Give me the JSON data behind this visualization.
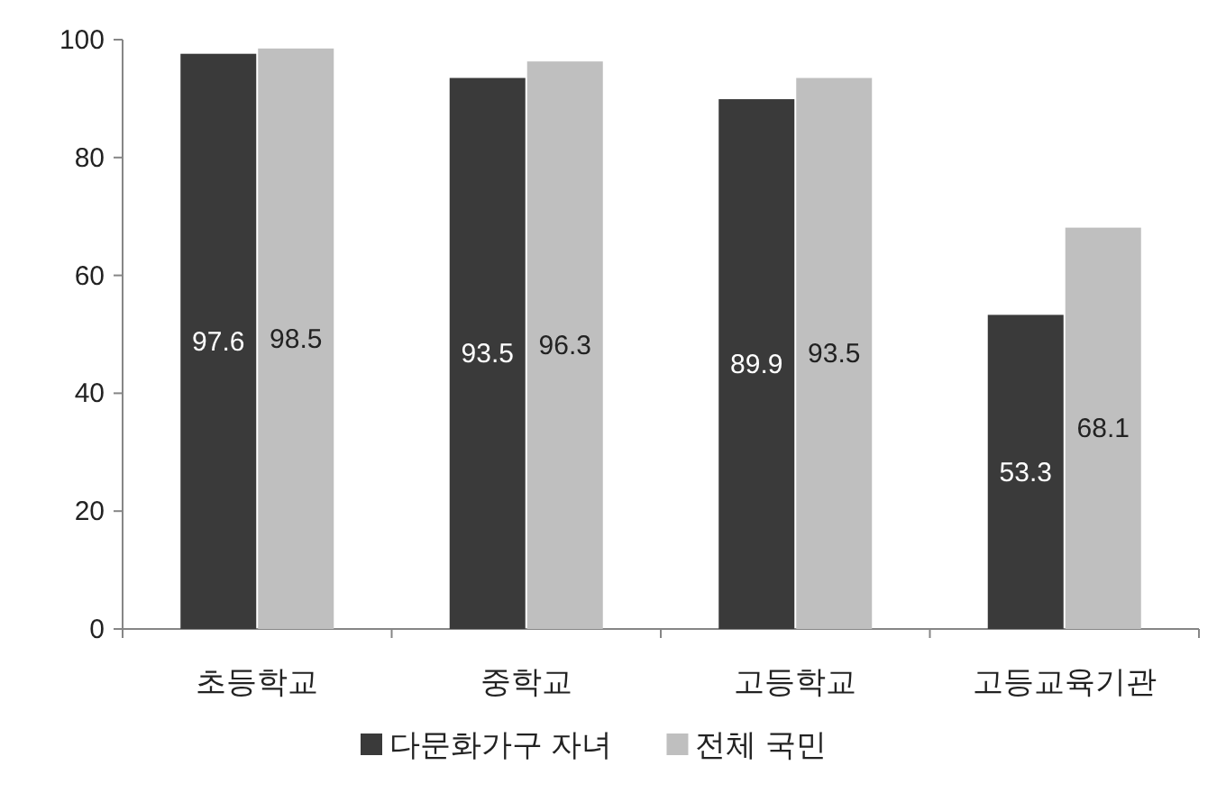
{
  "chart_data": {
    "type": "bar",
    "categories": [
      "초등학교",
      "중학교",
      "고등학교",
      "고등교육기관"
    ],
    "series": [
      {
        "name": "다문화가구 자녀",
        "color": "#3a3a3a",
        "values": [
          97.6,
          93.5,
          89.9,
          53.3
        ]
      },
      {
        "name": "전체 국민",
        "color": "#bfbfbf",
        "values": [
          98.5,
          96.3,
          93.5,
          68.1
        ]
      }
    ],
    "ylim": [
      0,
      100
    ],
    "yticks": [
      0,
      20,
      40,
      60,
      80,
      100
    ],
    "data_labels": true,
    "legend": "bottom",
    "grid": false
  }
}
